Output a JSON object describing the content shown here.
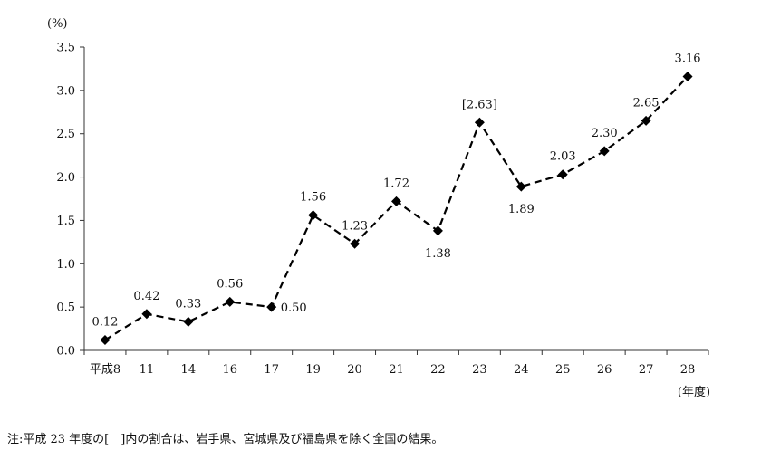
{
  "chart_data": {
    "type": "line",
    "title": "",
    "ylabel": "(%)",
    "xlabel": "(年度)",
    "categories": [
      "平成8",
      "11",
      "14",
      "16",
      "17",
      "19",
      "20",
      "21",
      "22",
      "23",
      "24",
      "25",
      "26",
      "27",
      "28"
    ],
    "series": [
      {
        "values": [
          0.12,
          0.42,
          0.33,
          0.56,
          0.5,
          1.56,
          1.23,
          1.72,
          1.38,
          2.63,
          1.89,
          2.03,
          2.3,
          2.65,
          3.16
        ],
        "labels": [
          "0.12",
          "0.42",
          "0.33",
          "0.56",
          "0.50",
          "1.56",
          "1.23",
          "1.72",
          "1.38",
          "[2.63]",
          "1.89",
          "2.03",
          "2.30",
          "2.65",
          "3.16"
        ],
        "color": "#000000",
        "line_style": "dashed",
        "marker": "diamond"
      }
    ],
    "ylim": [
      0,
      3.5
    ],
    "yticks": [
      "0.0",
      "0.5",
      "1.0",
      "1.5",
      "2.0",
      "2.5",
      "3.0",
      "3.5"
    ],
    "grid": false,
    "legend": "none"
  },
  "footnote": "注:平成 23 年度の[　]内の割合は、岩手県、宮城県及び福島県を除く全国の結果。"
}
